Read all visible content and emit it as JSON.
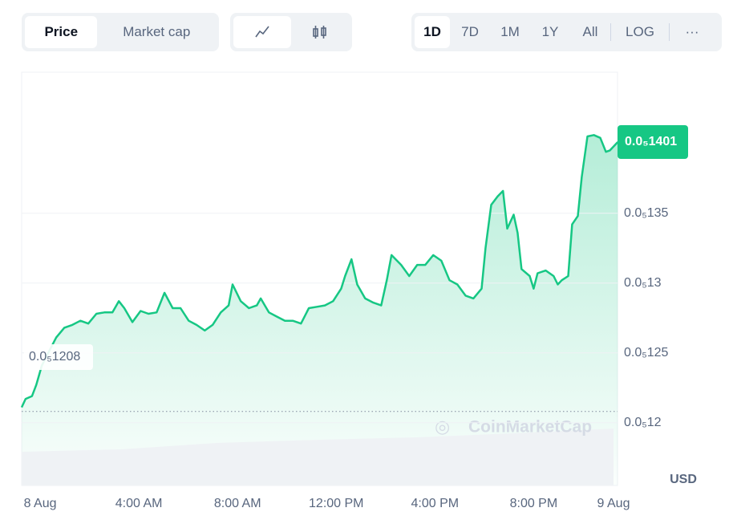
{
  "toolbar": {
    "metric": [
      "Price",
      "Market cap"
    ],
    "ranges": [
      "1D",
      "7D",
      "1M",
      "1Y",
      "All"
    ],
    "log": "LOG",
    "more": "···"
  },
  "chart_data": {
    "type": "line",
    "currency": "USD",
    "watermark": "CoinMarketCap",
    "x": [
      -0.75,
      -0.59,
      -0.33,
      -0.16,
      0.07,
      0.33,
      0.65,
      0.98,
      1.3,
      1.63,
      1.95,
      2.28,
      2.6,
      2.93,
      3.19,
      3.41,
      3.74,
      4.07,
      4.39,
      4.72,
      5.04,
      5.37,
      5.69,
      6.02,
      6.34,
      6.67,
      6.99,
      7.32,
      7.64,
      7.8,
      8.13,
      8.46,
      8.78,
      8.94,
      9.27,
      9.59,
      9.92,
      10.24,
      10.57,
      10.89,
      11.22,
      11.54,
      11.87,
      12.2,
      12.36,
      12.62,
      12.85,
      13.17,
      13.5,
      13.82,
      14.05,
      14.24,
      14.63,
      14.96,
      15.28,
      15.61,
      15.93,
      16.26,
      16.59,
      16.91,
      17.24,
      17.56,
      17.89,
      18.05,
      18.28,
      18.54,
      18.76,
      18.93,
      19.19,
      19.35,
      19.51,
      19.84,
      20.0,
      20.16,
      20.49,
      20.81,
      20.98,
      21.14,
      21.4,
      21.56,
      21.79,
      21.95,
      22.18,
      22.44,
      22.7,
      22.93,
      23.09,
      23.41
    ],
    "series": [
      {
        "name": "Price",
        "color": "#16c784",
        "values": [
          1.211e-06,
          1.217e-06,
          1.219e-06,
          1.227e-06,
          1.241e-06,
          1.25e-06,
          1.261e-06,
          1.268e-06,
          1.27e-06,
          1.273e-06,
          1.271e-06,
          1.278e-06,
          1.279e-06,
          1.279e-06,
          1.287e-06,
          1.282e-06,
          1.272e-06,
          1.28e-06,
          1.278e-06,
          1.279e-06,
          1.293e-06,
          1.282e-06,
          1.282e-06,
          1.273e-06,
          1.27e-06,
          1.266e-06,
          1.27e-06,
          1.279e-06,
          1.284e-06,
          1.299e-06,
          1.287e-06,
          1.282e-06,
          1.284e-06,
          1.289e-06,
          1.279e-06,
          1.276e-06,
          1.273e-06,
          1.273e-06,
          1.271e-06,
          1.282e-06,
          1.283e-06,
          1.284e-06,
          1.287e-06,
          1.296e-06,
          1.305e-06,
          1.317e-06,
          1.299e-06,
          1.289e-06,
          1.286e-06,
          1.284e-06,
          1.302e-06,
          1.32e-06,
          1.313e-06,
          1.305e-06,
          1.313e-06,
          1.313e-06,
          1.32e-06,
          1.316e-06,
          1.302e-06,
          1.299e-06,
          1.291e-06,
          1.289e-06,
          1.296e-06,
          1.325e-06,
          1.356e-06,
          1.362e-06,
          1.366e-06,
          1.339e-06,
          1.349e-06,
          1.336e-06,
          1.31e-06,
          1.305e-06,
          1.296e-06,
          1.307e-06,
          1.309e-06,
          1.305e-06,
          1.299e-06,
          1.302e-06,
          1.305e-06,
          1.342e-06,
          1.348e-06,
          1.376e-06,
          1.405e-06,
          1.406e-06,
          1.404e-06,
          1.394e-06,
          1.395e-06,
          1.401e-06
        ]
      }
    ],
    "open_price": {
      "value": 1.208e-06,
      "label": "0.0₅1208"
    },
    "current_price": {
      "value": 1.401e-06,
      "label": "0.0₅1401"
    },
    "xlim": [
      -0.75,
      23.4
    ],
    "xticks": [
      {
        "value": 0,
        "label": "8 Aug"
      },
      {
        "value": 4,
        "label": "4:00 AM"
      },
      {
        "value": 8,
        "label": "8:00 AM"
      },
      {
        "value": 12,
        "label": "12:00 PM"
      },
      {
        "value": 16,
        "label": "4:00 PM"
      },
      {
        "value": 20,
        "label": "8:00 PM"
      },
      {
        "value": 24,
        "label": "9 Aug"
      }
    ],
    "ylim": [
      1.155e-06,
      1.451e-06
    ],
    "yticks": [
      {
        "value": 1.2e-06,
        "label": "0.0₅12"
      },
      {
        "value": 1.25e-06,
        "label": "0.0₅125"
      },
      {
        "value": 1.3e-06,
        "label": "0.0₅13"
      },
      {
        "value": 1.35e-06,
        "label": "0.0₅135"
      }
    ],
    "grid": true
  }
}
